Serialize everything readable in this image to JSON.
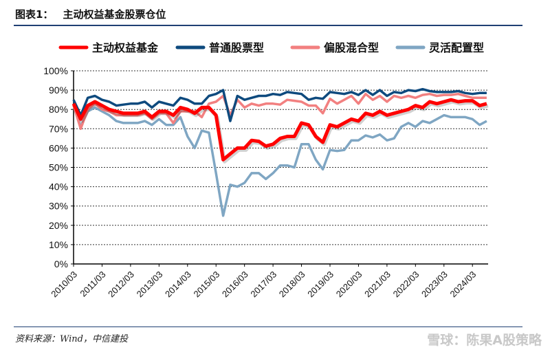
{
  "figure": {
    "label": "图表1：",
    "title": "主动权益基金股票仓位",
    "source": "资料来源：Wind，中信建投",
    "watermark": "雪球：陈果A股策略"
  },
  "chart_data": {
    "type": "line",
    "title": "主动权益基金股票仓位",
    "xlabel": "",
    "ylabel": "",
    "ylim": [
      0,
      100
    ],
    "y_ticks": [
      "0%",
      "10%",
      "20%",
      "30%",
      "40%",
      "50%",
      "60%",
      "70%",
      "80%",
      "90%",
      "100%"
    ],
    "x_ticks": [
      "2010/03",
      "2011/03",
      "2012/03",
      "2013/03",
      "2014/03",
      "2015/03",
      "2016/03",
      "2017/03",
      "2018/03",
      "2019/03",
      "2020/03",
      "2021/03",
      "2022/03",
      "2023/03",
      "2024/03"
    ],
    "x_range": [
      "2010/03",
      "2024/09"
    ],
    "x_frequency": "quarterly",
    "grid": "horizontal dotted",
    "legend": "top",
    "series": [
      {
        "name": "主动权益基金",
        "color": "#ff0000",
        "values": [
          83,
          75,
          82,
          84,
          82,
          80,
          79,
          78,
          78,
          78,
          79,
          76,
          79,
          79,
          77,
          81,
          80,
          78,
          81,
          81,
          77,
          54,
          57,
          60,
          60,
          64,
          63.5,
          61,
          62,
          65,
          66,
          66,
          73,
          72,
          66,
          63,
          72,
          71,
          73,
          75,
          74,
          78,
          77,
          79,
          77,
          78,
          79,
          80,
          82,
          81,
          84,
          83,
          84,
          85,
          84,
          84.5,
          84.5,
          82,
          83
        ]
      },
      {
        "name": "普通股票型",
        "color": "#0e4a7e",
        "values": [
          85,
          77,
          86,
          87,
          85,
          84,
          82,
          82.5,
          83,
          83,
          84,
          81,
          84,
          83,
          82,
          86,
          85,
          83,
          83,
          87,
          88,
          90,
          74,
          87,
          85,
          86,
          87,
          87,
          88,
          87.5,
          89,
          88.5,
          88,
          85,
          86,
          85.5,
          89,
          88.5,
          88,
          89,
          87.5,
          90,
          87.5,
          90,
          87,
          89,
          88.5,
          90,
          89.5,
          90.5,
          89.5,
          89,
          89,
          89,
          89.5,
          88.5,
          88,
          88.5,
          88.5
        ]
      },
      {
        "name": "偏股混合型",
        "color": "#f28080",
        "values": [
          82,
          70,
          80,
          83,
          80,
          79,
          77,
          77,
          77,
          77,
          78,
          75,
          78,
          78,
          73,
          79,
          79,
          79,
          76,
          83,
          84,
          87,
          77,
          85,
          81,
          83,
          82,
          83,
          83,
          82.5,
          85,
          84.5,
          84,
          82,
          82,
          78,
          85.5,
          83,
          85,
          87,
          83,
          88,
          85,
          87,
          84,
          87,
          86,
          87,
          86,
          87.5,
          88,
          87,
          87.5,
          87.5,
          88,
          87,
          86,
          86,
          86
        ]
      },
      {
        "name": "灵活配置型",
        "color": "#7fa6c3",
        "values": [
          83,
          71,
          79,
          81,
          79,
          77,
          74,
          73,
          73,
          73,
          74,
          72,
          75,
          72,
          72,
          76,
          66,
          60,
          69,
          68,
          47,
          25,
          41,
          40,
          42,
          47,
          47,
          44,
          47,
          51,
          51,
          50,
          62,
          62,
          54,
          49,
          59,
          58.5,
          59,
          64,
          64,
          66.5,
          65.5,
          67,
          64,
          65,
          71,
          73,
          71,
          74,
          73,
          75,
          77,
          76,
          76,
          76,
          75,
          72,
          74
        ]
      }
    ]
  }
}
